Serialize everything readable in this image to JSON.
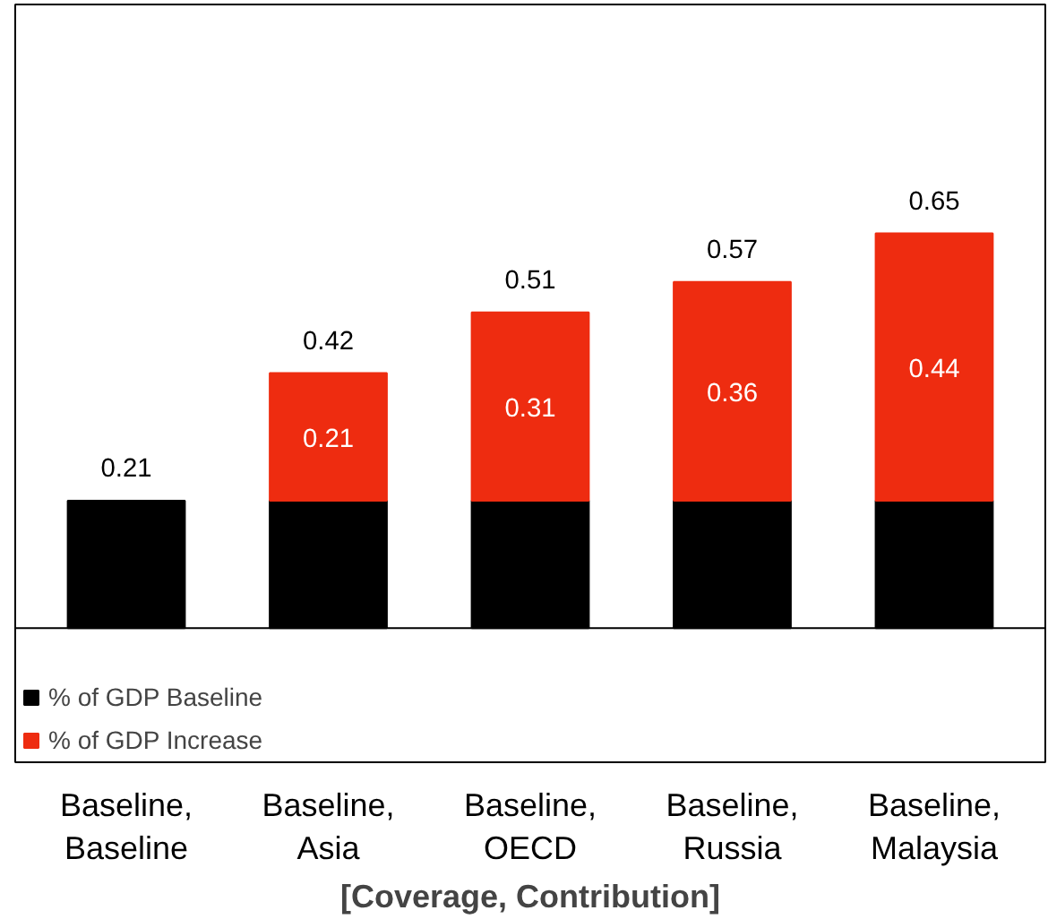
{
  "chart_data": {
    "type": "bar",
    "stacked": true,
    "xlabel": "[Coverage, Contribution]",
    "categories": [
      "Baseline,\nBaseline",
      "Baseline,\nAsia",
      "Baseline,\nOECD",
      "Baseline,\nRussia",
      "Baseline,\nMalaysia"
    ],
    "series": [
      {
        "name": "% of GDP Baseline",
        "color": "#000000",
        "values": [
          0.21,
          0.21,
          0.21,
          0.21,
          0.21
        ]
      },
      {
        "name": "% of GDP Increase",
        "color": "#ee2c10",
        "values": [
          null,
          0.21,
          0.31,
          0.36,
          0.44
        ],
        "value_labels": [
          null,
          "0.21",
          "0.31",
          "0.36",
          "0.44"
        ]
      }
    ],
    "totals": [
      "0.21",
      "0.42",
      "0.51",
      "0.57",
      "0.65"
    ],
    "legend": "bottom",
    "tick_labels": "x",
    "grid": false
  }
}
